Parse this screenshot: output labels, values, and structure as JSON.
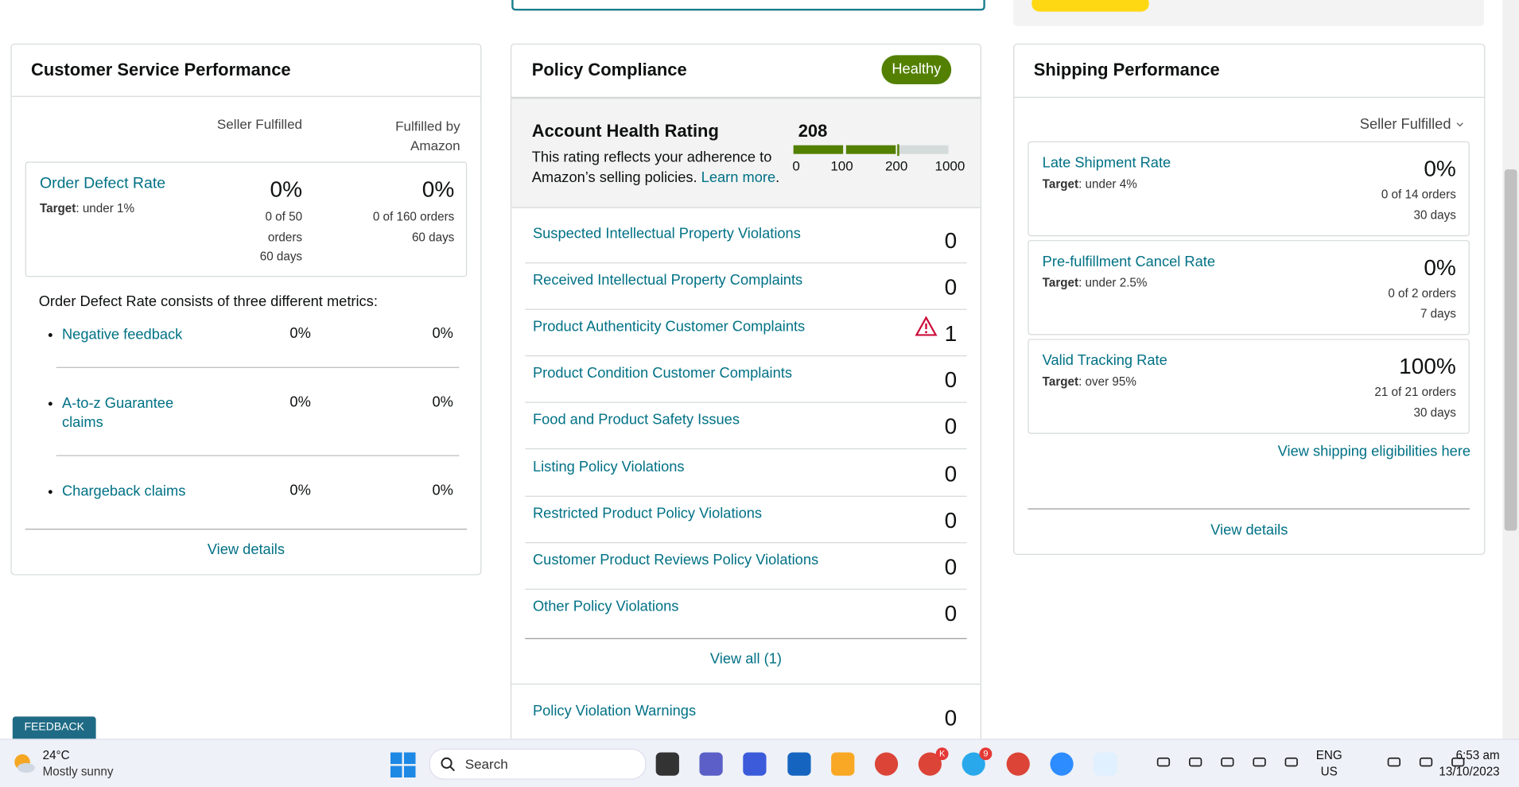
{
  "customer_service": {
    "title": "Customer Service Performance",
    "columns": [
      "Seller Fulfilled",
      "Fulfilled by Amazon"
    ],
    "odr": {
      "name": "Order Defect Rate",
      "target_label": "Target",
      "target": ": under 1%",
      "seller": {
        "value": "0%",
        "detail": "0 of 50 orders",
        "period": "60 days"
      },
      "fba": {
        "value": "0%",
        "detail": "0 of 160 orders",
        "period": "60 days"
      }
    },
    "intro": "Order Defect Rate consists of three different metrics:",
    "metrics": [
      {
        "name": "Negative feedback",
        "seller": "0%",
        "fba": "0%"
      },
      {
        "name": "A-to-z Guarantee claims",
        "seller": "0%",
        "fba": "0%"
      },
      {
        "name": "Chargeback claims",
        "seller": "0%",
        "fba": "0%"
      }
    ],
    "view_details": "View details"
  },
  "policy": {
    "title": "Policy Compliance",
    "status": "Healthy",
    "rating": {
      "title": "Account Health Rating",
      "score": 208,
      "description": "This rating reflects your adherence to Amazon’s selling policies.",
      "link": "Learn more",
      "end": ".",
      "ticks": [
        0,
        100,
        200,
        1000
      ]
    },
    "rows": [
      {
        "label": "Suspected Intellectual Property Violations",
        "count": 0
      },
      {
        "label": "Received Intellectual Property Complaints",
        "count": 0
      },
      {
        "label": "Product Authenticity Customer Complaints",
        "count": 1,
        "warning": true
      },
      {
        "label": "Product Condition Customer Complaints",
        "count": 0
      },
      {
        "label": "Food and Product Safety Issues",
        "count": 0
      },
      {
        "label": "Listing Policy Violations",
        "count": 0
      },
      {
        "label": "Restricted Product Policy Violations",
        "count": 0
      },
      {
        "label": "Customer Product Reviews Policy Violations",
        "count": 0
      },
      {
        "label": "Other Policy Violations",
        "count": 0
      }
    ],
    "view_all": "View all (1)",
    "warnings": {
      "label": "Policy Violation Warnings",
      "count": 0
    }
  },
  "shipping": {
    "title": "Shipping Performance",
    "filter": "Seller Fulfilled",
    "target_label": "Target",
    "metrics": [
      {
        "name": "Late Shipment Rate",
        "target": ": under 4%",
        "value": "0%",
        "detail": "0 of 14 orders",
        "period": "30 days"
      },
      {
        "name": "Pre-fulfillment Cancel Rate",
        "target": ": under 2.5%",
        "value": "0%",
        "detail": "0 of 2 orders",
        "period": "7 days"
      },
      {
        "name": "Valid Tracking Rate",
        "target": ": over 95%",
        "value": "100%",
        "detail": "21 of 21 orders",
        "period": "30 days"
      }
    ],
    "link": "View shipping eligibilities here",
    "view_details": "View details"
  },
  "feedback": "FEEDBACK",
  "taskbar": {
    "temperature": "24°C",
    "weather": "Mostly sunny",
    "search": "Search",
    "badges": [
      "K",
      "9"
    ],
    "language": "ENG",
    "region": "US",
    "time": "6:53 am",
    "date": "13/10/2023"
  }
}
